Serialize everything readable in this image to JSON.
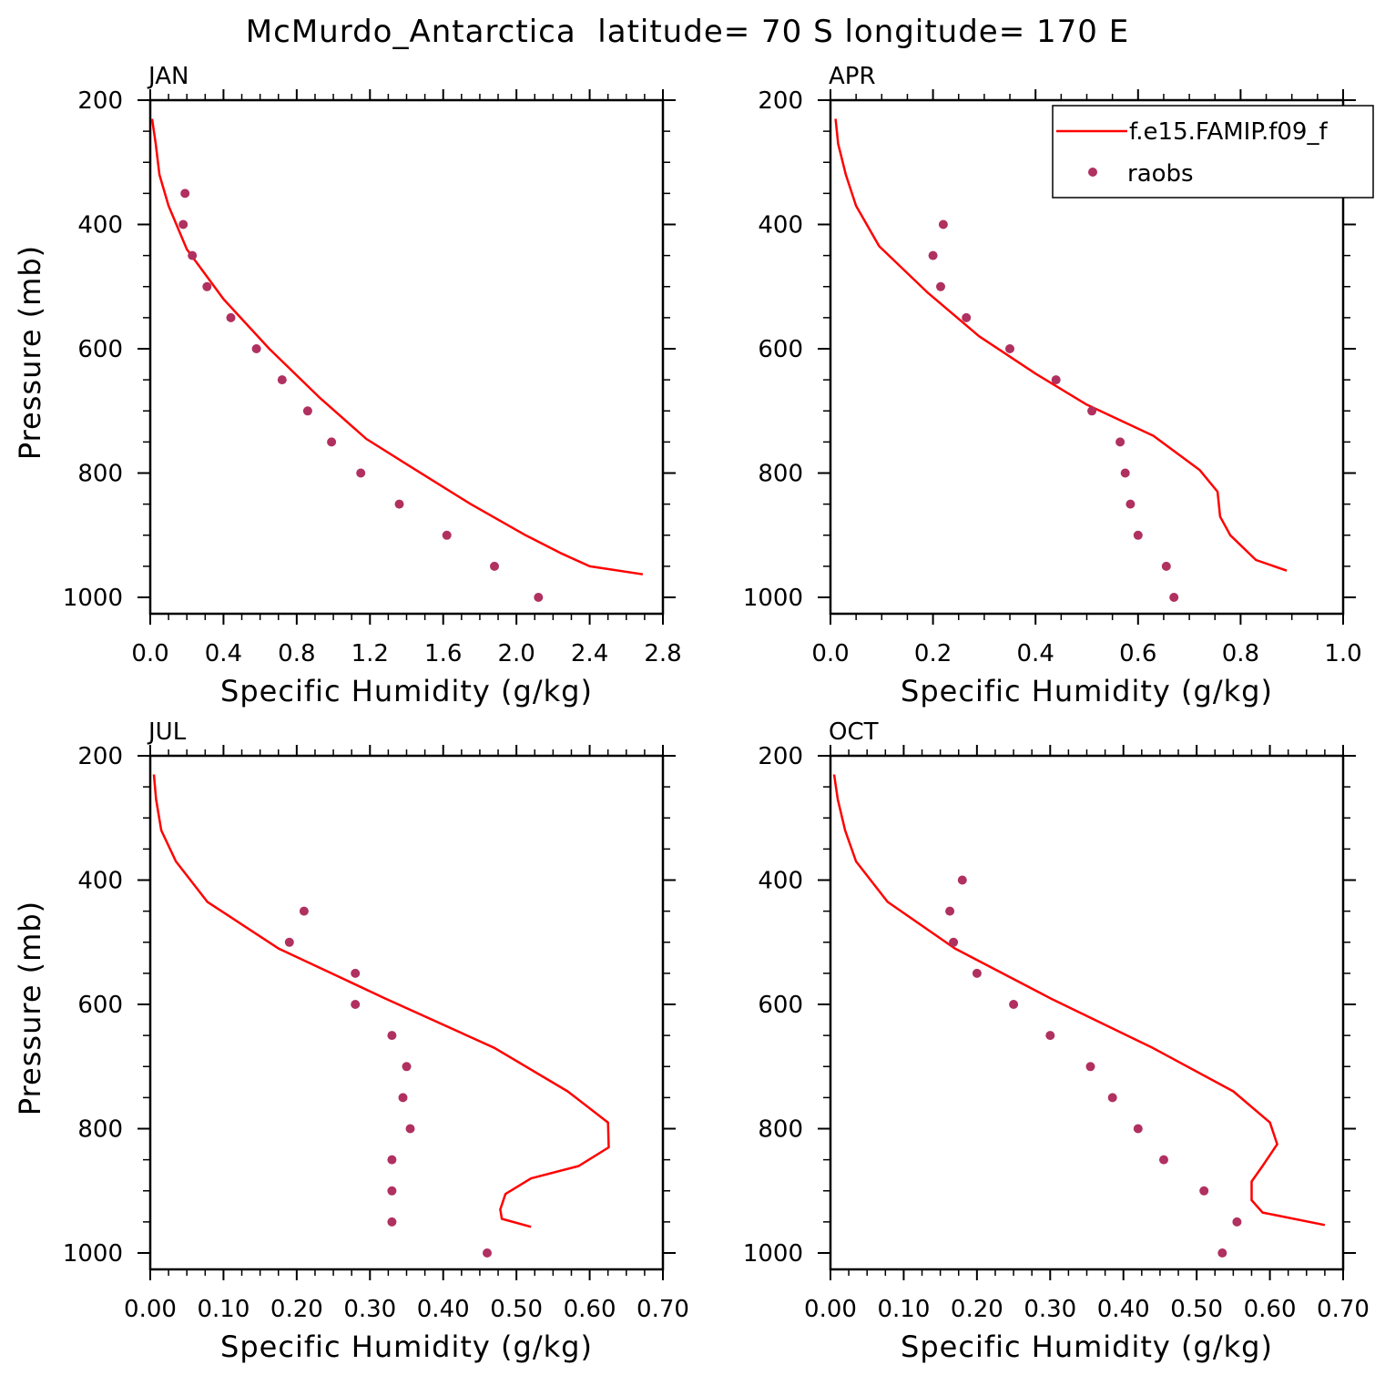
{
  "figure": {
    "title": "McMurdo_Antarctica  latitude= 70 S longitude= 170 E"
  },
  "legend": {
    "placement": "top-right of APR panel (clipped at figure edge)",
    "entries": [
      {
        "label": "f.e15.FAMIP.f09_f",
        "kind": "line",
        "color": "#ff0000"
      },
      {
        "label": "raobs",
        "kind": "marker",
        "color": "#b03060"
      }
    ]
  },
  "colors": {
    "model": "#ff0000",
    "obs": "#b03060",
    "axes": "#000000"
  },
  "chart_data": [
    {
      "type": "line",
      "panel": "JAN",
      "title": "JAN",
      "xlabel": "Specific Humidity (g/kg)",
      "ylabel": "Pressure (mb)",
      "xlim": [
        0.0,
        2.8
      ],
      "ylim": [
        1000,
        200
      ],
      "y_inverted": true,
      "xticks": [
        0.0,
        0.4,
        0.8,
        1.2,
        1.6,
        2.0,
        2.4,
        2.8
      ],
      "xtick_labels": [
        "0.0",
        "0.4",
        "0.8",
        "1.2",
        "1.6",
        "2.0",
        "2.4",
        "2.8"
      ],
      "yticks": [
        200,
        400,
        600,
        800,
        1000
      ],
      "ytick_labels": [
        "200",
        "400",
        "600",
        "800",
        "1000"
      ],
      "series": [
        {
          "name": "f.e15.FAMIP.f09_f",
          "kind": "line",
          "x": [
            0.01,
            0.03,
            0.05,
            0.1,
            0.2,
            0.4,
            0.65,
            0.93,
            1.18,
            1.45,
            1.75,
            2.05,
            2.25,
            2.4,
            2.69
          ],
          "y": [
            230,
            270,
            320,
            370,
            440,
            520,
            600,
            680,
            745,
            795,
            850,
            900,
            930,
            950,
            963
          ]
        },
        {
          "name": "raobs",
          "kind": "scatter",
          "x": [
            0.19,
            0.18,
            0.23,
            0.31,
            0.44,
            0.58,
            0.72,
            0.86,
            0.99,
            1.15,
            1.36,
            1.62,
            1.88,
            2.12
          ],
          "y": [
            350,
            400,
            450,
            500,
            550,
            600,
            650,
            700,
            750,
            800,
            850,
            900,
            950,
            1000
          ]
        }
      ]
    },
    {
      "type": "line",
      "panel": "APR",
      "title": "APR",
      "xlabel": "Specific Humidity (g/kg)",
      "ylabel": "",
      "xlim": [
        0.0,
        1.0
      ],
      "ylim": [
        1000,
        200
      ],
      "y_inverted": true,
      "xticks": [
        0.0,
        0.2,
        0.4,
        0.6,
        0.8,
        1.0
      ],
      "xtick_labels": [
        "0.0",
        "0.2",
        "0.4",
        "0.6",
        "0.8",
        "1.0"
      ],
      "yticks": [
        200,
        400,
        600,
        800,
        1000
      ],
      "ytick_labels": [
        "200",
        "400",
        "600",
        "800",
        "1000"
      ],
      "series": [
        {
          "name": "f.e15.FAMIP.f09_f",
          "kind": "line",
          "x": [
            0.01,
            0.015,
            0.03,
            0.05,
            0.095,
            0.19,
            0.29,
            0.4,
            0.5,
            0.63,
            0.72,
            0.755,
            0.76,
            0.78,
            0.83,
            0.89
          ],
          "y": [
            230,
            270,
            320,
            370,
            435,
            510,
            580,
            640,
            690,
            740,
            795,
            830,
            870,
            900,
            940,
            957
          ]
        },
        {
          "name": "raobs",
          "kind": "scatter",
          "x": [
            0.22,
            0.2,
            0.215,
            0.265,
            0.35,
            0.44,
            0.51,
            0.565,
            0.575,
            0.585,
            0.6,
            0.655,
            0.67
          ],
          "y": [
            400,
            450,
            500,
            550,
            600,
            650,
            700,
            750,
            800,
            850,
            900,
            950,
            1000
          ]
        }
      ]
    },
    {
      "type": "line",
      "panel": "JUL",
      "title": "JUL",
      "xlabel": "Specific Humidity (g/kg)",
      "ylabel": "Pressure (mb)",
      "xlim": [
        0.0,
        0.7
      ],
      "ylim": [
        1000,
        200
      ],
      "y_inverted": true,
      "xticks": [
        0.0,
        0.1,
        0.2,
        0.3,
        0.4,
        0.5,
        0.6,
        0.7
      ],
      "xtick_labels": [
        "0.00",
        "0.10",
        "0.20",
        "0.30",
        "0.40",
        "0.50",
        "0.60",
        "0.70"
      ],
      "yticks": [
        200,
        400,
        600,
        800,
        1000
      ],
      "ytick_labels": [
        "200",
        "400",
        "600",
        "800",
        "1000"
      ],
      "series": [
        {
          "name": "f.e15.FAMIP.f09_f",
          "kind": "line",
          "x": [
            0.005,
            0.008,
            0.015,
            0.035,
            0.078,
            0.175,
            0.32,
            0.47,
            0.57,
            0.625,
            0.626,
            0.585,
            0.52,
            0.485,
            0.478,
            0.48,
            0.52
          ],
          "y": [
            230,
            270,
            320,
            370,
            435,
            510,
            590,
            670,
            740,
            790,
            830,
            860,
            880,
            905,
            930,
            945,
            958
          ]
        },
        {
          "name": "raobs",
          "kind": "scatter",
          "x": [
            0.21,
            0.19,
            0.28,
            0.28,
            0.33,
            0.35,
            0.345,
            0.355,
            0.33,
            0.33,
            0.33,
            0.46
          ],
          "y": [
            450,
            500,
            550,
            600,
            650,
            700,
            750,
            800,
            850,
            900,
            950,
            1000
          ]
        }
      ]
    },
    {
      "type": "line",
      "panel": "OCT",
      "title": "OCT",
      "xlabel": "Specific Humidity (g/kg)",
      "ylabel": "",
      "xlim": [
        0.0,
        0.7
      ],
      "ylim": [
        1000,
        200
      ],
      "y_inverted": true,
      "xticks": [
        0.0,
        0.1,
        0.2,
        0.3,
        0.4,
        0.5,
        0.6,
        0.7
      ],
      "xtick_labels": [
        "0.00",
        "0.10",
        "0.20",
        "0.30",
        "0.40",
        "0.50",
        "0.60",
        "0.70"
      ],
      "yticks": [
        200,
        400,
        600,
        800,
        1000
      ],
      "ytick_labels": [
        "200",
        "400",
        "600",
        "800",
        "1000"
      ],
      "series": [
        {
          "name": "f.e15.FAMIP.f09_f",
          "kind": "line",
          "x": [
            0.005,
            0.01,
            0.02,
            0.035,
            0.078,
            0.17,
            0.3,
            0.44,
            0.55,
            0.6,
            0.61,
            0.59,
            0.575,
            0.575,
            0.59,
            0.675
          ],
          "y": [
            230,
            270,
            320,
            370,
            435,
            510,
            590,
            670,
            740,
            790,
            825,
            860,
            885,
            915,
            935,
            955
          ]
        },
        {
          "name": "raobs",
          "kind": "scatter",
          "x": [
            0.18,
            0.163,
            0.168,
            0.2,
            0.25,
            0.3,
            0.355,
            0.385,
            0.42,
            0.455,
            0.51,
            0.555,
            0.535
          ],
          "y": [
            400,
            450,
            500,
            550,
            600,
            650,
            700,
            750,
            800,
            850,
            900,
            950,
            1000
          ]
        }
      ]
    }
  ]
}
